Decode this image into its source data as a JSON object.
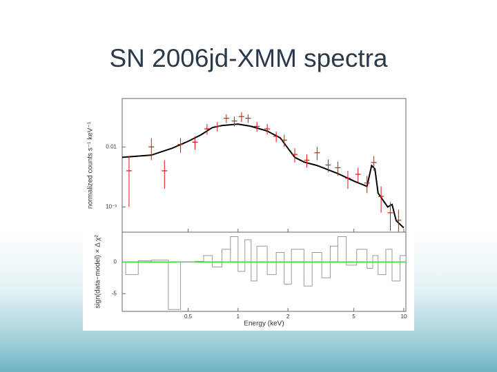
{
  "title": "SN 2006jd-XMM spectra",
  "chart_data": [
    {
      "type": "line",
      "ylabel": "normalized counts s⁻¹ keV⁻¹",
      "xlog": true,
      "ylog": true,
      "xlim": [
        0.2,
        10.3
      ],
      "ylim": [
        0.00038,
        0.064
      ],
      "yticks": [
        0.01,
        {
          "value": 0.001,
          "label": "10⁻³"
        }
      ],
      "series": [
        {
          "name": "model",
          "color": "#000000",
          "x": [
            0.2,
            0.3,
            0.4,
            0.5,
            0.6,
            0.7,
            0.8,
            1.0,
            1.2,
            1.5,
            1.8,
            2.0,
            2.2,
            2.5,
            3,
            4,
            5,
            6,
            6.4,
            6.7,
            7,
            8,
            8.5,
            9,
            10
          ],
          "values": [
            0.0067,
            0.0073,
            0.0095,
            0.0124,
            0.016,
            0.021,
            0.0227,
            0.024,
            0.022,
            0.0184,
            0.0141,
            0.0095,
            0.0067,
            0.0056,
            0.0049,
            0.0036,
            0.0027,
            0.0022,
            0.0049,
            0.0043,
            0.0017,
            0.001,
            0.0011,
            0.00059,
            0.00045
          ]
        },
        {
          "name": "data",
          "color": "#dd1111",
          "x": [
            0.22,
            0.3,
            0.36,
            0.45,
            0.55,
            0.65,
            0.75,
            0.85,
            0.95,
            1.05,
            1.15,
            1.3,
            1.5,
            1.7,
            1.9,
            2.2,
            2.6,
            3.0,
            3.5,
            4.0,
            4.6,
            5.3,
            6.0,
            6.6,
            7.3,
            8.3,
            9.3
          ],
          "values": [
            0.004,
            0.01,
            0.004,
            0.011,
            0.012,
            0.02,
            0.022,
            0.03,
            0.027,
            0.032,
            0.03,
            0.022,
            0.02,
            0.015,
            0.013,
            0.0075,
            0.006,
            0.008,
            0.005,
            0.0045,
            0.003,
            0.0035,
            0.0025,
            0.0055,
            0.0015,
            0.0008,
            0.0006
          ],
          "errors": [
            0.003,
            0.004,
            0.002,
            0.003,
            0.003,
            0.004,
            0.004,
            0.005,
            0.005,
            0.006,
            0.005,
            0.004,
            0.004,
            0.003,
            0.003,
            0.002,
            0.0015,
            0.002,
            0.0012,
            0.0012,
            0.001,
            0.001,
            0.0008,
            0.0015,
            0.0007,
            0.0004,
            0.0003
          ]
        }
      ]
    },
    {
      "type": "step",
      "ylabel": "sign(data−model) × Δ χ²",
      "xlabel": "Energy (keV)",
      "xlog": true,
      "xlim": [
        0.2,
        10.3
      ],
      "ylim": [
        -7.8,
        4.7
      ],
      "xticks": [
        0.5,
        1,
        2,
        5,
        10
      ],
      "yticks": [
        0,
        -5
      ],
      "zero_line_color": "#33dd33",
      "series": [
        {
          "name": "residuals",
          "color": "#999999",
          "x": [
            0.21,
            0.25,
            0.3,
            0.38,
            0.45,
            0.55,
            0.62,
            0.7,
            0.8,
            0.9,
            1.0,
            1.1,
            1.2,
            1.3,
            1.5,
            1.7,
            1.9,
            2.1,
            2.5,
            2.8,
            3.2,
            3.6,
            4.0,
            4.5,
            5.2,
            6.0,
            6.5,
            7.0,
            7.8,
            8.5,
            9.5
          ],
          "values": [
            -2,
            0.2,
            0.3,
            -7.5,
            0,
            0.1,
            1.0,
            -0.8,
            2.0,
            4.0,
            -1.5,
            3.5,
            -3,
            2.5,
            -2,
            1.5,
            -3.5,
            2.0,
            -3.8,
            1.5,
            -2.5,
            2.5,
            4.0,
            -0.5,
            2.0,
            -1.0,
            1.0,
            -2.0,
            2.0,
            -3.0,
            1.0
          ]
        }
      ]
    }
  ]
}
